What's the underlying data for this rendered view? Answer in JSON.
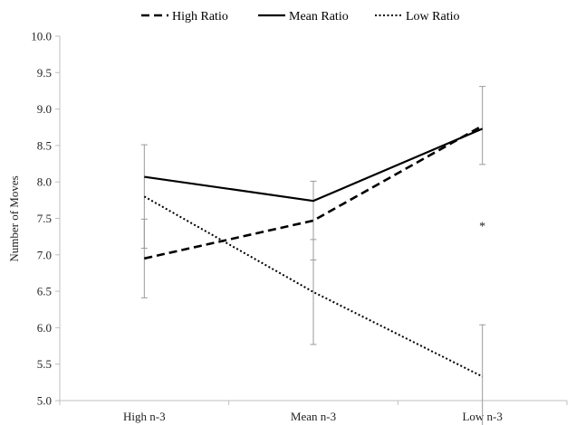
{
  "chart_data": {
    "type": "line",
    "title": "",
    "xlabel": "",
    "ylabel": "Number of Moves",
    "categories": [
      "High n-3",
      "Mean n-3",
      "Low n-3"
    ],
    "ylim": [
      5.0,
      10.0
    ],
    "yticks": [
      "5.0",
      "5.5",
      "6.0",
      "6.5",
      "7.0",
      "7.5",
      "8.0",
      "8.5",
      "9.0",
      "9.5",
      "10.0"
    ],
    "grid": false,
    "legend_position": "top",
    "series": [
      {
        "name": "High Ratio",
        "style": "dashed",
        "values": [
          6.95,
          7.47,
          8.77
        ],
        "error_low": [
          6.41,
          6.93,
          8.24
        ],
        "error_high": [
          7.49,
          8.01,
          9.31
        ]
      },
      {
        "name": "Mean Ratio",
        "style": "solid",
        "values": [
          8.07,
          7.74,
          8.73
        ],
        "error_low": null,
        "error_high": null
      },
      {
        "name": "Low Ratio",
        "style": "dotted",
        "values": [
          7.8,
          6.49,
          5.33
        ],
        "error_low": [
          7.09,
          5.77,
          4.61
        ],
        "error_high": [
          8.51,
          7.21,
          6.04
        ]
      }
    ],
    "annotations": [
      {
        "text": "*",
        "x": "Low n-3",
        "y": 7.4
      }
    ],
    "colors": {
      "line": "#000000",
      "error_bar": "#9a9a9a",
      "axis": "#bfbfbf"
    }
  }
}
